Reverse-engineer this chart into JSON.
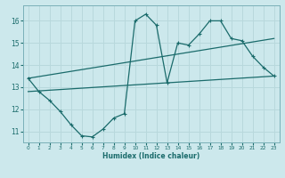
{
  "xlabel": "Humidex (Indice chaleur)",
  "bg_color": "#cce8ec",
  "line_color": "#1a6b6b",
  "grid_color": "#b8d8dc",
  "xlim": [
    -0.5,
    23.5
  ],
  "ylim": [
    10.5,
    16.7
  ],
  "yticks": [
    11,
    12,
    13,
    14,
    15,
    16
  ],
  "xticks": [
    0,
    1,
    2,
    3,
    4,
    5,
    6,
    7,
    8,
    9,
    10,
    11,
    12,
    13,
    14,
    15,
    16,
    17,
    18,
    19,
    20,
    21,
    22,
    23
  ],
  "curve1_x": [
    0,
    1,
    2,
    3,
    4,
    5,
    6,
    7,
    8,
    9,
    10,
    11,
    12,
    13,
    14,
    15,
    16,
    17,
    18,
    19,
    20,
    21,
    22,
    23
  ],
  "curve1_y": [
    13.4,
    12.8,
    12.4,
    11.9,
    11.3,
    10.8,
    10.75,
    11.1,
    11.6,
    11.8,
    16.0,
    16.3,
    15.8,
    13.2,
    15.0,
    14.9,
    15.4,
    16.0,
    16.0,
    15.2,
    15.1,
    14.4,
    13.9,
    13.5
  ],
  "curve2_x": [
    0,
    23
  ],
  "curve2_y": [
    13.4,
    15.2
  ],
  "curve3_x": [
    0,
    23
  ],
  "curve3_y": [
    12.8,
    13.5
  ]
}
